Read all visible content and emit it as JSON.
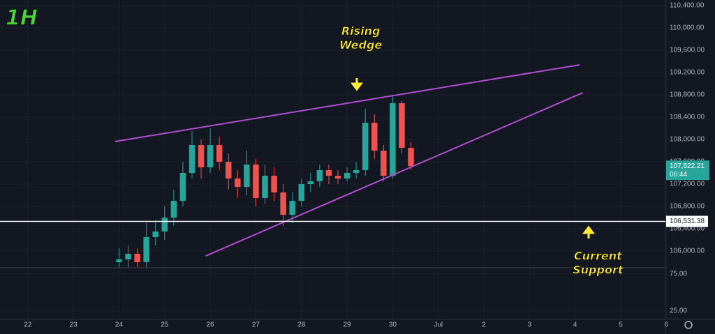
{
  "chart_data": {
    "type": "candlestick",
    "title": "1H",
    "x": [
      24,
      24.2,
      24.4,
      24.6,
      24.8,
      25,
      25.2,
      25.4,
      25.6,
      25.8,
      26,
      26.2,
      26.4,
      26.6,
      26.8,
      27,
      27.2,
      27.4,
      27.6,
      27.8,
      28,
      28.2,
      28.4,
      28.6,
      28.8,
      29,
      29.2,
      29.4,
      29.6,
      29.8,
      30,
      30.2,
      30.4
    ],
    "open": [
      105800,
      105850,
      105950,
      105800,
      106250,
      106350,
      106600,
      106900,
      107400,
      107900,
      107500,
      107900,
      107600,
      107300,
      107150,
      107550,
      106950,
      107350,
      107050,
      106650,
      106900,
      107200,
      107250,
      107450,
      107350,
      107300,
      107400,
      107450,
      108300,
      107800,
      107350,
      108650,
      107850
    ],
    "high": [
      106050,
      106100,
      106050,
      106500,
      106550,
      106800,
      107100,
      107600,
      108150,
      108000,
      108200,
      108050,
      107750,
      107450,
      107800,
      107650,
      107550,
      107500,
      107200,
      107050,
      107300,
      107400,
      107550,
      107550,
      107450,
      107500,
      107600,
      108550,
      108450,
      107900,
      108780,
      108700,
      107950
    ],
    "low": [
      105650,
      105700,
      105650,
      105700,
      106100,
      106200,
      106450,
      106800,
      107300,
      107300,
      107400,
      107450,
      107100,
      106950,
      107000,
      106800,
      106850,
      106900,
      106450,
      106500,
      106800,
      107050,
      107150,
      107200,
      107200,
      107250,
      107300,
      107350,
      107650,
      107250,
      107300,
      107750,
      107450
    ],
    "close": [
      105850,
      105950,
      105800,
      106250,
      106350,
      106600,
      106900,
      107400,
      107900,
      107500,
      107900,
      107600,
      107300,
      107150,
      107550,
      106950,
      107350,
      107050,
      106650,
      106900,
      107200,
      107250,
      107450,
      107350,
      107300,
      107400,
      107450,
      108300,
      107800,
      107350,
      108650,
      107850,
      107522.21
    ],
    "up_color": "#26a69a",
    "down_color": "#ef5350",
    "xlim": [
      21.39,
      35.98
    ],
    "ylim": [
      105712.5,
      110500
    ],
    "xticks": [
      22,
      23,
      24,
      25,
      26,
      27,
      28,
      29,
      30,
      {
        "value": 31,
        "label": "Jul"
      },
      {
        "value": 32,
        "label": "2"
      },
      {
        "value": 33,
        "label": "3"
      },
      {
        "value": 34,
        "label": "4"
      },
      {
        "value": 35,
        "label": "5"
      },
      {
        "value": 36,
        "label": "6"
      }
    ],
    "yticks": [
      {
        "value": 110400,
        "label": "110,400.00"
      },
      {
        "value": 110000,
        "label": "110,000.00"
      },
      {
        "value": 109600,
        "label": "109,600.00"
      },
      {
        "value": 109200,
        "label": "109,200.00"
      },
      {
        "value": 108800,
        "label": "108,800.00"
      },
      {
        "value": 108400,
        "label": "108,400.00"
      },
      {
        "value": 108000,
        "label": "108,000.00"
      },
      {
        "value": 107600,
        "label": "107,600.00"
      },
      {
        "value": 107200,
        "label": "107,200.00"
      },
      {
        "value": 106800,
        "label": "106,800.00"
      },
      {
        "value": 106400,
        "label": "106,400.00"
      },
      {
        "value": 106000,
        "label": "106,000.00"
      }
    ],
    "grid": true,
    "trendlines": [
      {
        "x1": 23.91,
        "y1": 107962,
        "x2": 34.1,
        "y2": 109338,
        "color": "#b04fd0"
      },
      {
        "x1": 25.9,
        "y1": 105912,
        "x2": 34.17,
        "y2": 108838,
        "color": "#b04fd0"
      }
    ],
    "support": {
      "value": 106531.38,
      "label": "106,531.38",
      "color": "#ffffff"
    },
    "last_price": {
      "value": 107522.21,
      "label": "107,522.21",
      "countdown": "06:44"
    },
    "annotations": [
      {
        "lines": [
          "Rising",
          "Wedge"
        ],
        "x": 29.3,
        "y": 109930
      },
      {
        "lines": [
          "Current",
          "Support"
        ],
        "x": 34.5,
        "y": 105900
      }
    ],
    "indicator": {
      "ylim": [
        13.7,
        82.5
      ],
      "yticks": [
        {
          "value": 75,
          "label": "75.00"
        },
        {
          "value": 25,
          "label": "25.00"
        }
      ]
    }
  }
}
